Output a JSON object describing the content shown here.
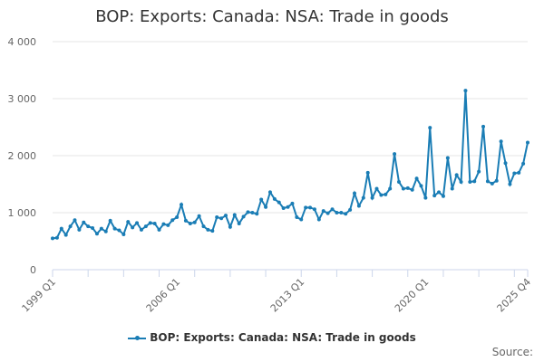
{
  "chart_data": {
    "type": "line",
    "title": "BOP: Exports: Canada: NSA: Trade in goods",
    "xlabel": "",
    "ylabel": "",
    "source_label": "Source:",
    "x_tick_labels": [
      "1999 Q1",
      "2006 Q1",
      "2013 Q1",
      "2020 Q1",
      "2025 Q4"
    ],
    "y_ticks": [
      0,
      1000,
      2000,
      3000,
      4000
    ],
    "y_tick_labels": [
      "0",
      "1 000",
      "2 000",
      "3 000",
      "4 000"
    ],
    "ylim": [
      0,
      4000
    ],
    "grid": true,
    "legend_position": "bottom",
    "color": "#1a7db5",
    "x_start": "1999 Q1",
    "x_end": "2025 Q4",
    "series": [
      {
        "name": "BOP: Exports: Canada: NSA: Trade in goods",
        "values": [
          550,
          560,
          720,
          610,
          760,
          870,
          700,
          830,
          760,
          730,
          630,
          720,
          670,
          860,
          720,
          690,
          620,
          840,
          740,
          820,
          700,
          760,
          820,
          810,
          700,
          800,
          780,
          870,
          920,
          1140,
          860,
          810,
          830,
          940,
          760,
          700,
          680,
          920,
          900,
          950,
          750,
          960,
          810,
          930,
          1010,
          1000,
          980,
          1230,
          1100,
          1360,
          1240,
          1180,
          1080,
          1100,
          1160,
          920,
          880,
          1090,
          1090,
          1060,
          880,
          1030,
          990,
          1060,
          1000,
          1000,
          980,
          1050,
          1340,
          1120,
          1260,
          1700,
          1260,
          1420,
          1310,
          1320,
          1420,
          2030,
          1540,
          1420,
          1430,
          1400,
          1600,
          1470,
          1260,
          2490,
          1300,
          1360,
          1290,
          1960,
          1420,
          1660,
          1540,
          3140,
          1540,
          1550,
          1720,
          2510,
          1550,
          1510,
          1560,
          2250,
          1870,
          1500,
          1690,
          1700,
          1860,
          2230
        ]
      }
    ]
  }
}
